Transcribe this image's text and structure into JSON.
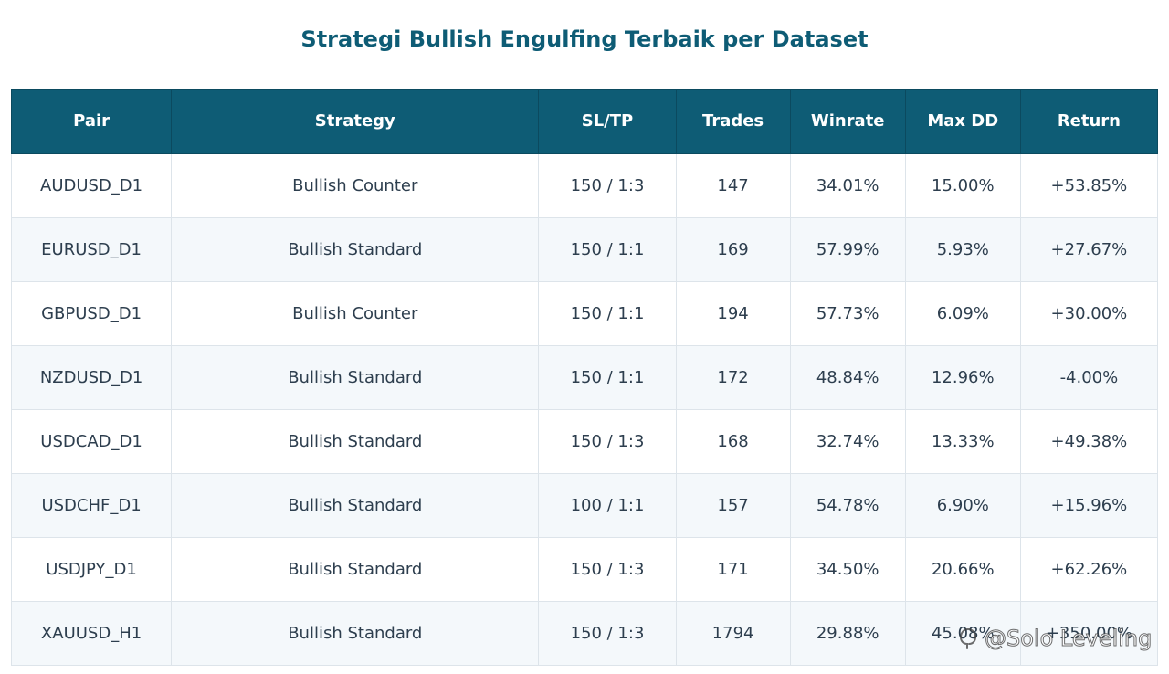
{
  "title": "Strategi Bullish Engulfing Terbaik per Dataset",
  "chart_data": {
    "type": "table",
    "title": "Strategi Bullish Engulfing Terbaik per Dataset",
    "columns": [
      "Pair",
      "Strategy",
      "SL/TP",
      "Trades",
      "Winrate",
      "Max DD",
      "Return"
    ],
    "rows": [
      [
        "AUDUSD_D1",
        "Bullish Counter",
        "150 / 1:3",
        "147",
        "34.01%",
        "15.00%",
        "+53.85%"
      ],
      [
        "EURUSD_D1",
        "Bullish Standard",
        "150 / 1:1",
        "169",
        "57.99%",
        "5.93%",
        "+27.67%"
      ],
      [
        "GBPUSD_D1",
        "Bullish Counter",
        "150 / 1:1",
        "194",
        "57.73%",
        "6.09%",
        "+30.00%"
      ],
      [
        "NZDUSD_D1",
        "Bullish Standard",
        "150 / 1:1",
        "172",
        "48.84%",
        "12.96%",
        "-4.00%"
      ],
      [
        "USDCAD_D1",
        "Bullish Standard",
        "150 / 1:3",
        "168",
        "32.74%",
        "13.33%",
        "+49.38%"
      ],
      [
        "USDCHF_D1",
        "Bullish Standard",
        "100 / 1:1",
        "157",
        "54.78%",
        "6.90%",
        "+15.96%"
      ],
      [
        "USDJPY_D1",
        "Bullish Standard",
        "150 / 1:3",
        "171",
        "34.50%",
        "20.66%",
        "+62.26%"
      ],
      [
        "XAUUSD_H1",
        "Bullish Standard",
        "150 / 1:3",
        "1794",
        "29.88%",
        "45.08%",
        "+350.00%"
      ]
    ]
  },
  "colors": {
    "header_bg": "#0e5c75",
    "header_text": "#ffffff",
    "title": "#0e5c75",
    "cell_text": "#2d3e4e",
    "row_alt_bg": "#f4f8fb"
  },
  "watermark": {
    "text": "@Solo Leveling",
    "icon": "watermark-logo-icon"
  }
}
